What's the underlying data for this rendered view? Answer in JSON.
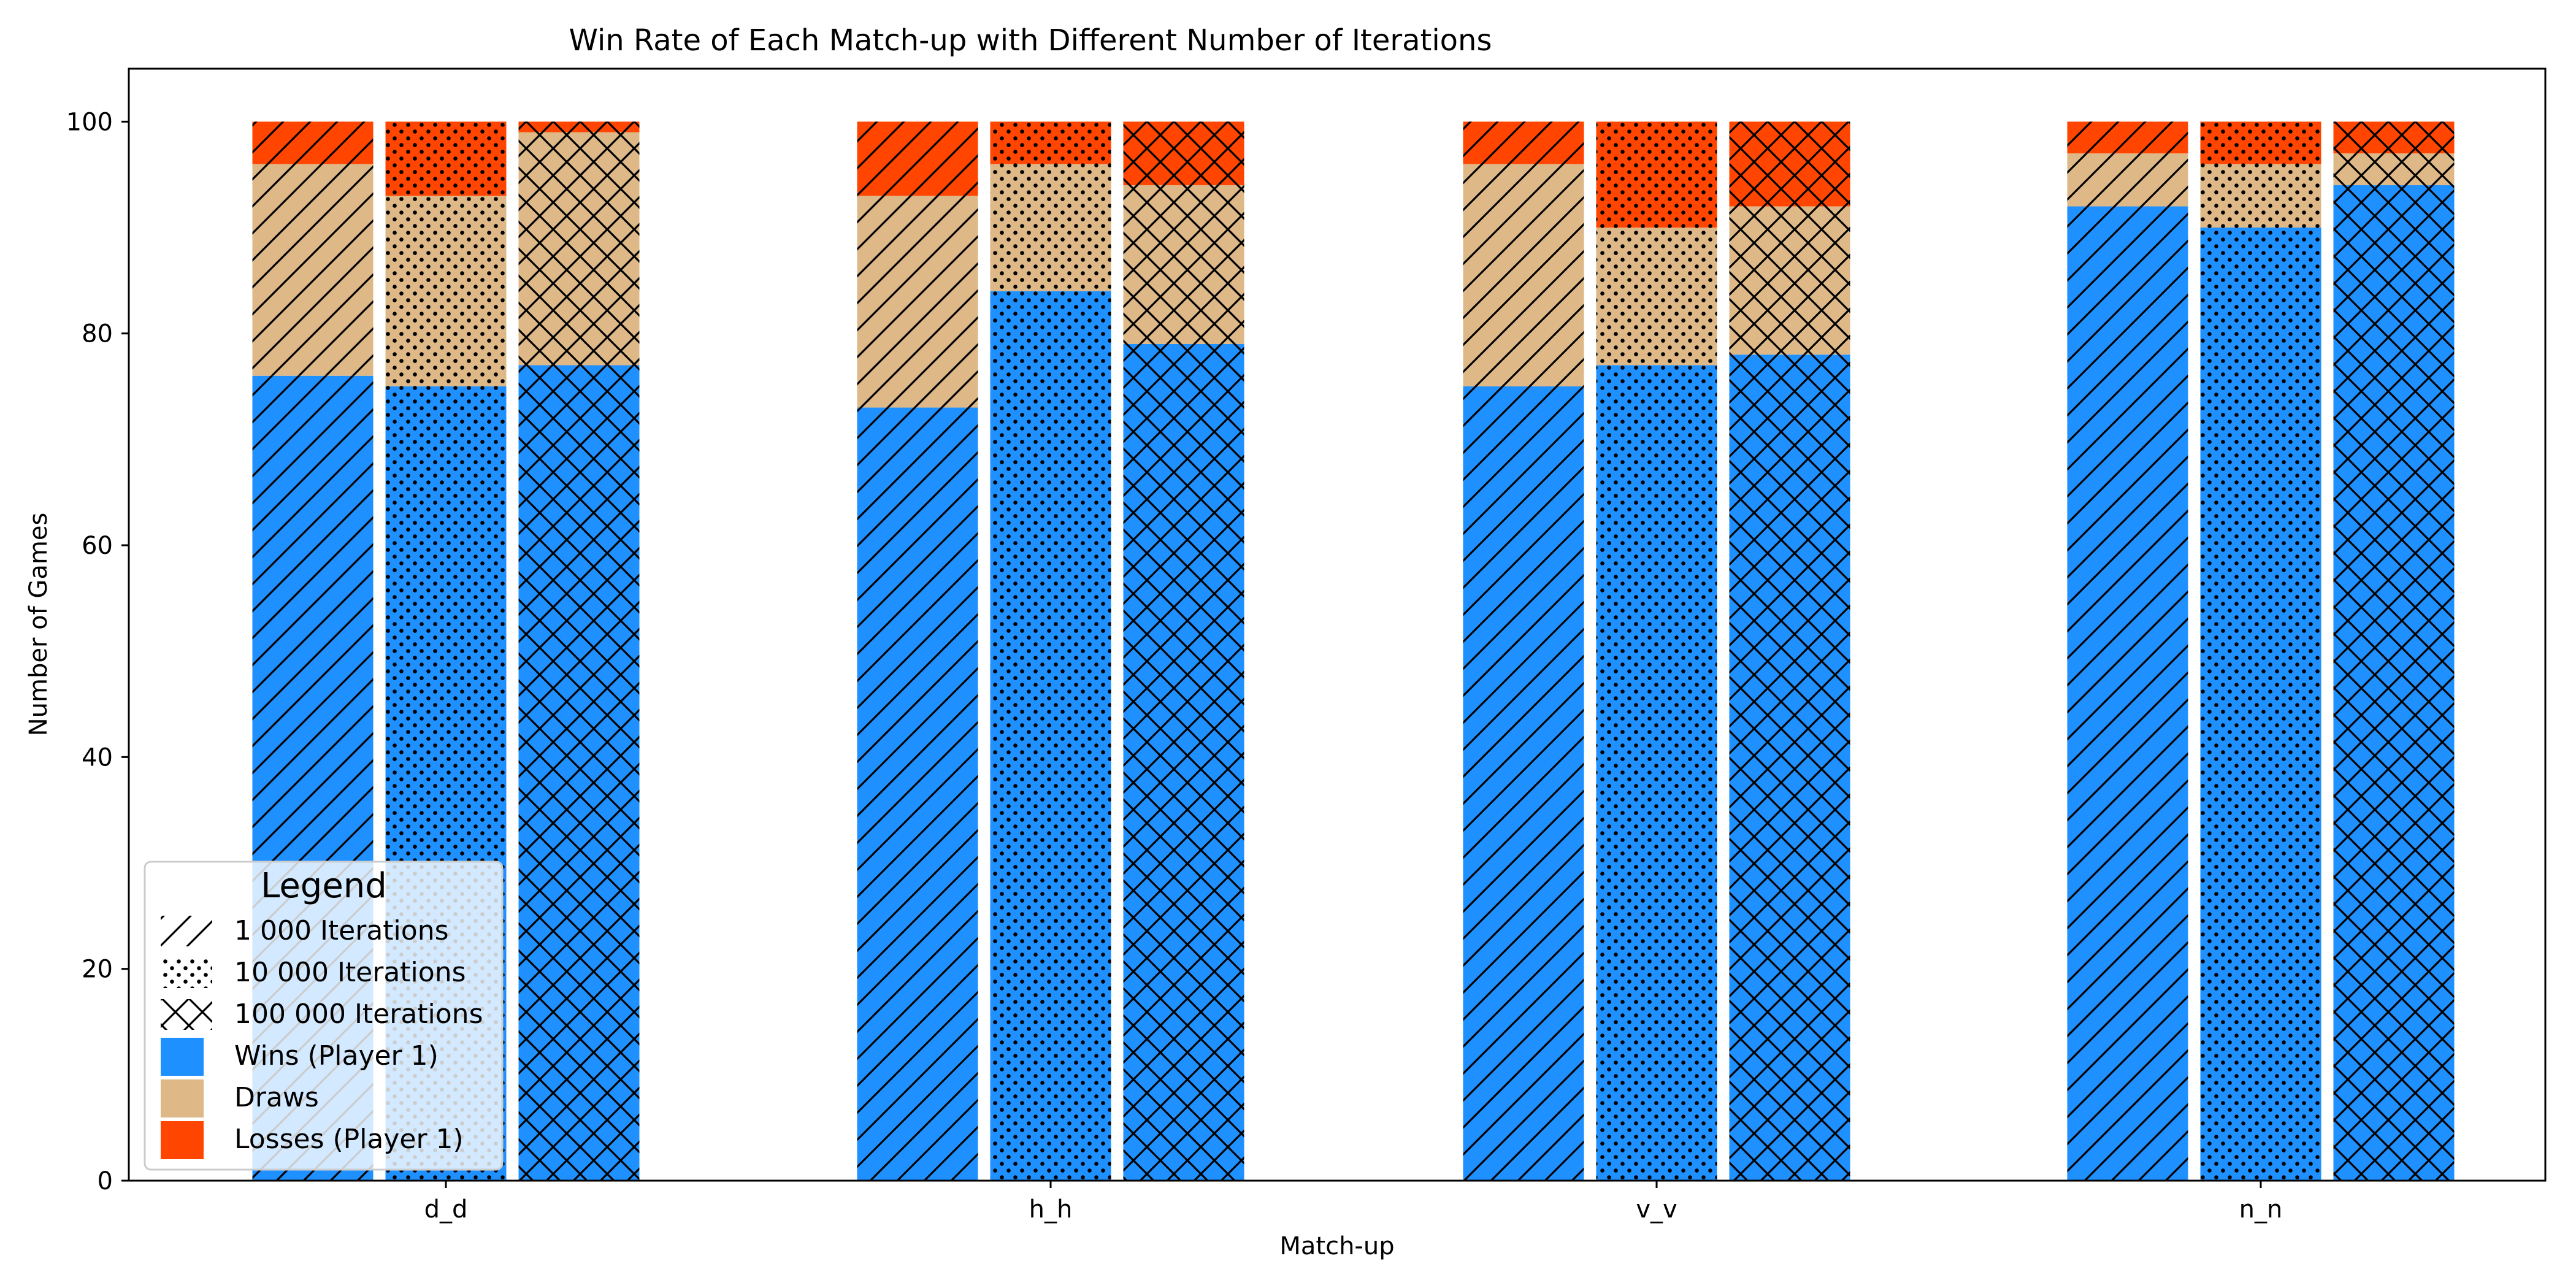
{
  "chart_data": {
    "type": "bar",
    "title": "Win Rate of Each Match-up with Different Number of Iterations",
    "xlabel": "Match-up",
    "ylabel": "Number of Games",
    "categories": [
      "d_d",
      "h_h",
      "v_v",
      "n_n"
    ],
    "ylim": [
      0,
      105
    ],
    "yticks": [
      0,
      20,
      40,
      60,
      80,
      100
    ],
    "stacked": true,
    "iterations": [
      {
        "name": "1 000 Iterations",
        "hatch": "diagonal"
      },
      {
        "name": "10 000 Iterations",
        "hatch": "dots"
      },
      {
        "name": "100 000 Iterations",
        "hatch": "crosshatch"
      }
    ],
    "outcomes": [
      {
        "name": "Wins (Player 1)",
        "color": "#1e90ff"
      },
      {
        "name": "Draws",
        "color": "#deb887"
      },
      {
        "name": "Losses (Player 1)",
        "color": "#ff4500"
      }
    ],
    "values": {
      "d_d": [
        [
          76,
          20,
          4
        ],
        [
          75,
          18,
          7
        ],
        [
          77,
          22,
          1
        ]
      ],
      "h_h": [
        [
          73,
          20,
          7
        ],
        [
          84,
          12,
          4
        ],
        [
          79,
          15,
          6
        ]
      ],
      "v_v": [
        [
          75,
          21,
          4
        ],
        [
          77,
          13,
          10
        ],
        [
          78,
          14,
          8
        ]
      ],
      "n_n": [
        [
          92,
          5,
          3
        ],
        [
          90,
          6,
          4
        ],
        [
          94,
          3,
          3
        ]
      ]
    },
    "legend": {
      "title": "Legend",
      "placement": "lower-left"
    },
    "grid": false
  }
}
